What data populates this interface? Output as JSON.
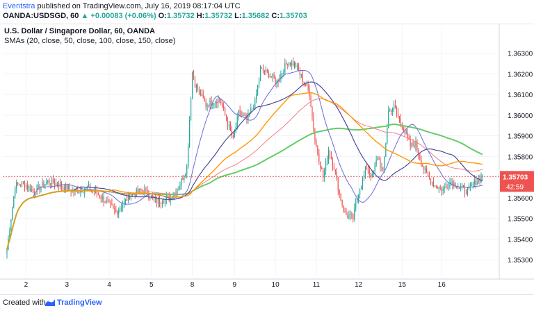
{
  "header": {
    "author": "Eventstra",
    "published_text": "published on TradingView.com, July 16, 2019 08:17:04 UTC",
    "symbol": "OANDA:USDSGD, 60",
    "change_arrow": "▲",
    "change": "+0.00083 (+0.06%)",
    "o_label": "O:",
    "o": "1.35732",
    "h_label": "H:",
    "h": "1.35732",
    "l_label": "L:",
    "l": "1.35682",
    "c_label": "C:",
    "c": "1.35703"
  },
  "legend": {
    "title": "U.S. Dollar / Singapore Dollar, 60, OANDA",
    "indicators": "SMAs (20, close, 50, close, 100, close, 150, close)"
  },
  "price_label": {
    "value": "1.35703",
    "countdown": "42:59"
  },
  "footer": {
    "created_with": "Created with",
    "brand": "TradingView"
  },
  "colors": {
    "up": "#26a69a",
    "down": "#ef5350",
    "sma20": "#6a6ad8",
    "sma50": "#4a4a9a",
    "sma100": "#f77c80",
    "sma150": "#66cc66",
    "sma_orange": "#ff9800",
    "price_line": "#ef5350"
  },
  "chart_data": {
    "type": "candlestick",
    "y_axis": {
      "ticks": [
        "1.36300",
        "1.36200",
        "1.36100",
        "1.36000",
        "1.35900",
        "1.35800",
        "1.35700",
        "1.35600",
        "1.35500",
        "1.35400",
        "1.35300"
      ],
      "ylim": [
        1.3522,
        1.3643
      ]
    },
    "x_axis": {
      "ticks": [
        "2",
        "3",
        "4",
        "5",
        "8",
        "9",
        "10",
        "11",
        "12",
        "15",
        "16"
      ]
    },
    "last_price": 1.35703,
    "ohlc_anchor_points": [
      [
        0,
        1.3535
      ],
      [
        6,
        1.3566
      ],
      [
        12,
        1.3567
      ],
      [
        20,
        1.3563
      ],
      [
        30,
        1.3568
      ],
      [
        40,
        1.3566
      ],
      [
        50,
        1.3563
      ],
      [
        60,
        1.3565
      ],
      [
        70,
        1.356
      ],
      [
        80,
        1.3553
      ],
      [
        90,
        1.3561
      ],
      [
        100,
        1.3564
      ],
      [
        110,
        1.3558
      ],
      [
        120,
        1.356
      ],
      [
        126,
        1.3565
      ],
      [
        132,
        1.3575
      ],
      [
        136,
        1.3621
      ],
      [
        138,
        1.3615
      ],
      [
        146,
        1.3605
      ],
      [
        156,
        1.3608
      ],
      [
        166,
        1.3588
      ],
      [
        170,
        1.3601
      ],
      [
        176,
        1.3598
      ],
      [
        182,
        1.3606
      ],
      [
        186,
        1.3622
      ],
      [
        192,
        1.362
      ],
      [
        198,
        1.3616
      ],
      [
        206,
        1.3626
      ],
      [
        212,
        1.3624
      ],
      [
        218,
        1.3616
      ],
      [
        222,
        1.3611
      ],
      [
        226,
        1.3588
      ],
      [
        232,
        1.357
      ],
      [
        236,
        1.3583
      ],
      [
        240,
        1.3575
      ],
      [
        244,
        1.3562
      ],
      [
        248,
        1.3552
      ],
      [
        254,
        1.355
      ],
      [
        258,
        1.3563
      ],
      [
        264,
        1.3575
      ],
      [
        268,
        1.357
      ],
      [
        272,
        1.358
      ],
      [
        276,
        1.3572
      ],
      [
        280,
        1.3602
      ],
      [
        284,
        1.3604
      ],
      [
        290,
        1.3595
      ],
      [
        296,
        1.3585
      ],
      [
        300,
        1.3586
      ],
      [
        304,
        1.3577
      ],
      [
        308,
        1.3571
      ],
      [
        314,
        1.3566
      ],
      [
        320,
        1.3564
      ],
      [
        326,
        1.3568
      ],
      [
        332,
        1.3565
      ],
      [
        338,
        1.3563
      ],
      [
        344,
        1.3568
      ],
      [
        349,
        1.357
      ]
    ],
    "candle_count": 350
  }
}
